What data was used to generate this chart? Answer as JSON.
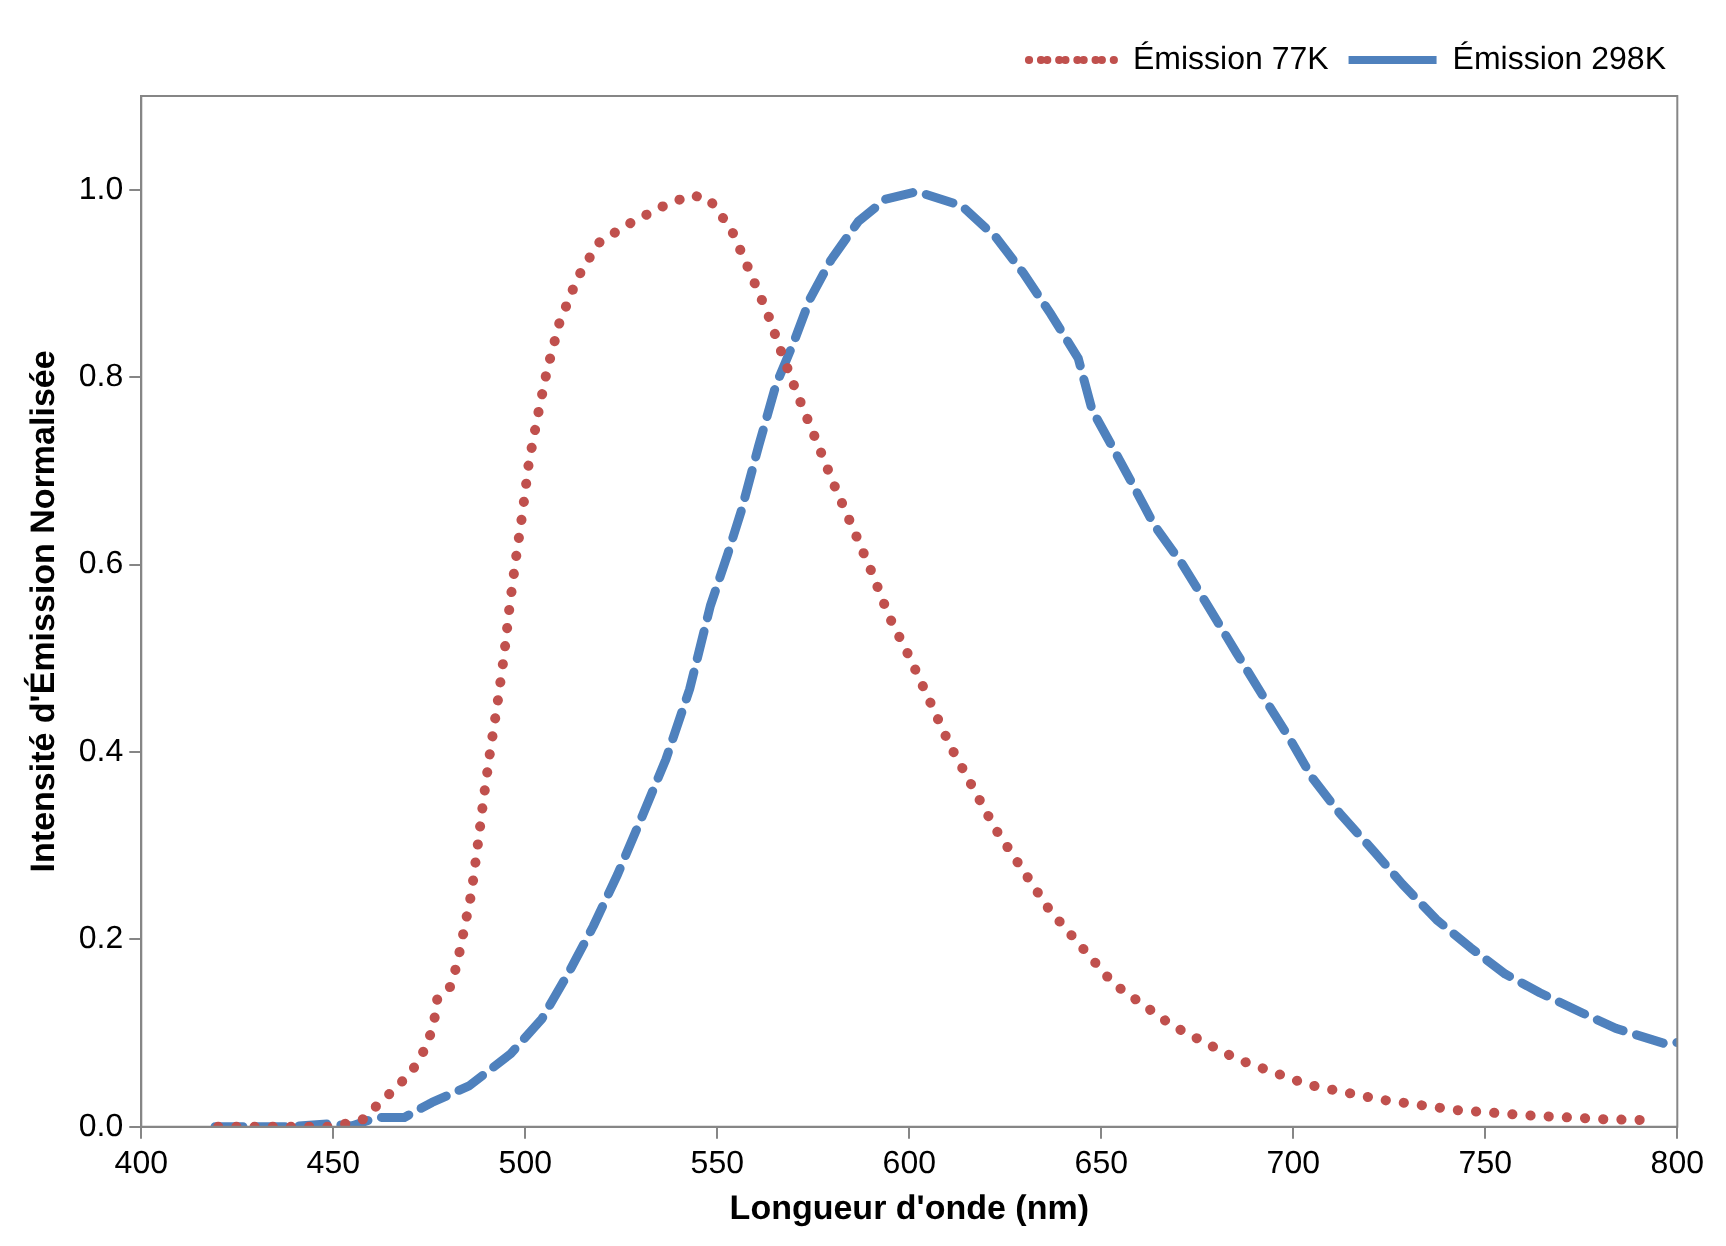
{
  "chart_data": {
    "type": "line",
    "xlabel": "Longueur d'onde (nm)",
    "ylabel": "Intensité d'Émission Normalisée",
    "xlim": [
      400,
      800
    ],
    "xticks": [
      400,
      450,
      500,
      550,
      600,
      650,
      700,
      750,
      800
    ],
    "ylim": [
      0,
      1.1
    ],
    "yticks": [
      {
        "value": 0,
        "label": "0.0"
      },
      {
        "value": 0.2,
        "label": "0.2"
      },
      {
        "value": 0.4,
        "label": "0.4"
      },
      {
        "value": 0.6,
        "label": "0.6"
      },
      {
        "value": 0.8,
        "label": "0.8"
      },
      {
        "value": 1,
        "label": "1.0"
      }
    ],
    "grid": false,
    "legend": "top right",
    "marker": "none",
    "series": [
      {
        "name": "Émission 77K",
        "color": "#c0504d",
        "line_style": "dotted",
        "x": [
          420,
          430,
          440,
          450,
          457.7,
          462.2,
          467,
          471.2,
          474.4,
          476.2,
          477.1,
          480.6,
          482.3,
          483.5,
          486,
          487.6,
          489.2,
          490.9,
          492.8,
          494.5,
          495.9,
          497.5,
          499.3,
          500.9,
          503.2,
          505.7,
          508.9,
          513.6,
          519,
          526.3,
          535.1,
          543,
          547.7,
          553.6,
          558.2,
          563.1,
          567,
          571.1,
          575.8,
          580.3,
          585.3,
          590.3,
          594.8,
          600.2,
          610.6,
          622.4,
          636.4,
          653.1,
          668.5,
          685.5,
          703.8,
          722.7,
          742.1,
          761.8,
          781.4,
          794.3
        ],
        "values": [
          0,
          0,
          0,
          0,
          0.008,
          0.026,
          0.044,
          0.064,
          0.087,
          0.111,
          0.137,
          0.15,
          0.175,
          0.199,
          0.25,
          0.3,
          0.352,
          0.402,
          0.453,
          0.504,
          0.555,
          0.605,
          0.656,
          0.708,
          0.758,
          0.808,
          0.858,
          0.906,
          0.943,
          0.962,
          0.981,
          0.994,
          0.991,
          0.958,
          0.915,
          0.868,
          0.823,
          0.779,
          0.732,
          0.686,
          0.639,
          0.591,
          0.544,
          0.5,
          0.407,
          0.318,
          0.232,
          0.153,
          0.108,
          0.072,
          0.045,
          0.029,
          0.018,
          0.012,
          0.008,
          0.007
        ]
      },
      {
        "name": "Émission 298K",
        "color": "#4f81bd",
        "line_style": "dashed",
        "x": [
          419.2,
          438,
          448.8,
          455,
          461.3,
          468.5,
          475.7,
          485.5,
          496.2,
          504.3,
          511.5,
          517.7,
          524,
          530.3,
          536.6,
          542.8,
          548.2,
          552.7,
          556.3,
          560.8,
          565.3,
          569.8,
          574.2,
          579.6,
          586.7,
          593.9,
          602,
          613.6,
          622.6,
          629.7,
          636.9,
          644,
          647.6,
          653.1,
          658.5,
          663.8,
          671,
          678.2,
          685.3,
          692.5,
          698.8,
          705,
          712.2,
          721.2,
          728.4,
          737.3,
          746.2,
          755.2,
          764.2,
          775,
          784,
          797.3,
          800
        ],
        "values": [
          0,
          0,
          0.003,
          0.001,
          0.01,
          0.01,
          0.026,
          0.044,
          0.078,
          0.115,
          0.166,
          0.214,
          0.269,
          0.33,
          0.392,
          0.467,
          0.556,
          0.611,
          0.658,
          0.727,
          0.792,
          0.836,
          0.884,
          0.925,
          0.966,
          0.99,
          0.998,
          0.983,
          0.949,
          0.911,
          0.867,
          0.82,
          0.765,
          0.724,
          0.683,
          0.642,
          0.601,
          0.553,
          0.505,
          0.457,
          0.416,
          0.372,
          0.334,
          0.293,
          0.259,
          0.221,
          0.191,
          0.163,
          0.143,
          0.122,
          0.105,
          0.088,
          0.09
        ]
      }
    ]
  }
}
